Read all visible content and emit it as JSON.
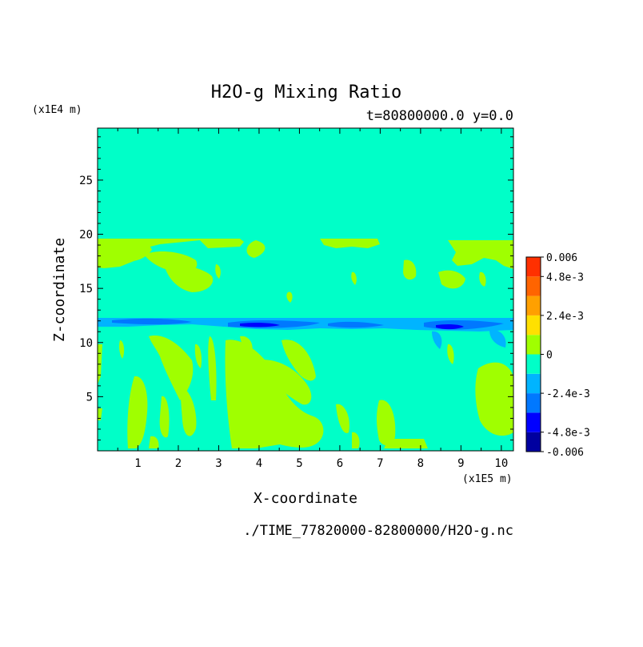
{
  "chart_data": {
    "type": "heatmap",
    "title": "H2O-g Mixing Ratio",
    "subtitle": "t=80800000.0 y=0.0",
    "xlabel": "X-coordinate",
    "ylabel": "Z-coordinate",
    "x_unit": "(x1E5 m)",
    "y_unit": "(x1E4 m)",
    "xlim": [
      0,
      10.3
    ],
    "ylim": [
      0,
      29.8
    ],
    "x_ticks": [
      1,
      2,
      3,
      4,
      5,
      6,
      7,
      8,
      9,
      10
    ],
    "x_tick_labels": [
      "1",
      "2",
      "3",
      "4",
      "5",
      "6",
      "7",
      "8",
      "9",
      "10"
    ],
    "y_ticks": [
      5,
      10,
      15,
      20,
      25
    ],
    "y_tick_labels": [
      "5",
      "10",
      "15",
      "20",
      "25"
    ],
    "colorbar": {
      "min": -0.006,
      "max": 0.006,
      "levels": [
        {
          "from": -0.006,
          "to": -0.0048,
          "color": "#0000a0"
        },
        {
          "from": -0.0048,
          "to": -0.0036,
          "color": "#0000ff"
        },
        {
          "from": -0.0036,
          "to": -0.0024,
          "color": "#0078ff"
        },
        {
          "from": -0.0024,
          "to": -0.0012,
          "color": "#00b4ff"
        },
        {
          "from": -0.0012,
          "to": 0,
          "color": "#00ffc8"
        },
        {
          "from": 0,
          "to": 0.0012,
          "color": "#a0ff00"
        },
        {
          "from": 0.0012,
          "to": 0.0024,
          "color": "#ffe000"
        },
        {
          "from": 0.0024,
          "to": 0.0036,
          "color": "#ffa000"
        },
        {
          "from": 0.0036,
          "to": 0.0048,
          "color": "#ff6400"
        },
        {
          "from": 0.0048,
          "to": 0.006,
          "color": "#ff3000"
        }
      ],
      "tick_values": [
        0.006,
        0.0048,
        0.0024,
        0,
        -0.0024,
        -0.0048,
        -0.006
      ],
      "tick_labels": [
        "0.006",
        "4.8e-3",
        "2.4e-3",
        "0",
        "-2.4e-3",
        "-4.8e-3",
        "-0.006"
      ]
    },
    "background_color": "#00ffc8",
    "field_colors": {
      "positive": "#a0ff00",
      "negative": "#00b4ff",
      "strong_negative": "#0078ff",
      "deepest": "#0000ff"
    },
    "footer": "./TIME_77820000-82800000/H2O-g.nc"
  }
}
